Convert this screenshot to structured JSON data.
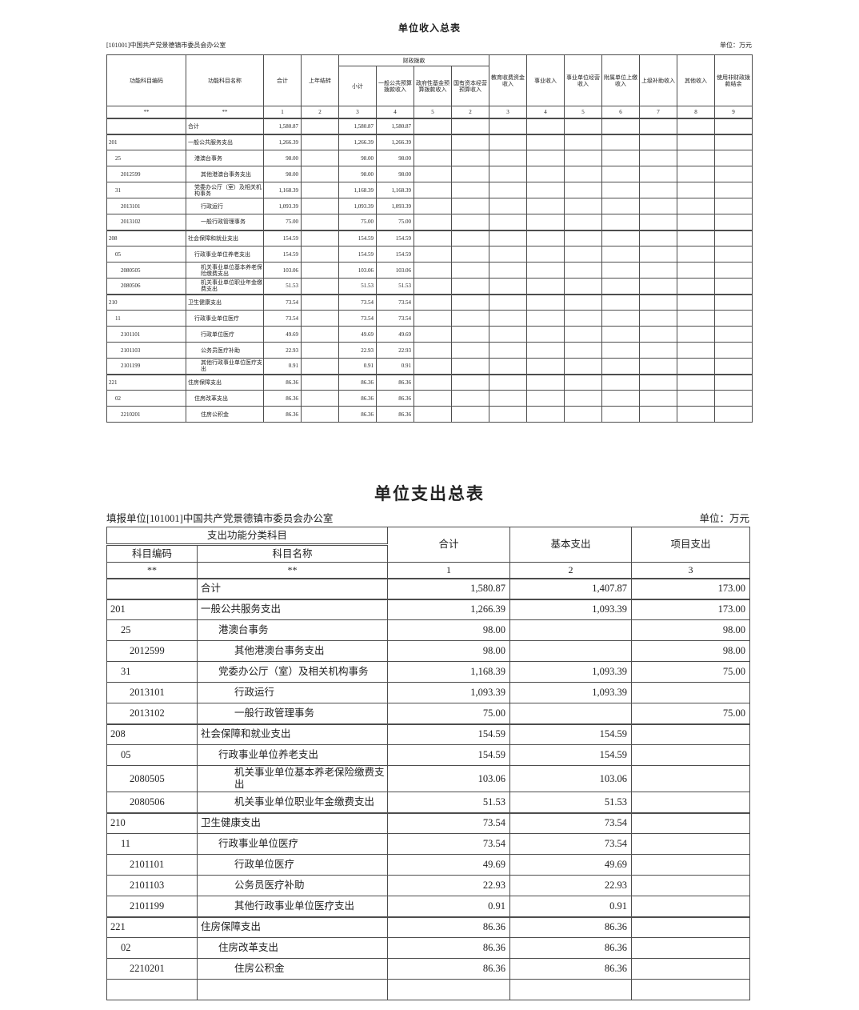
{
  "page": {
    "background_color": "#ffffff",
    "text_color": "#222222",
    "border_color": "#4d4d4d"
  },
  "income_table": {
    "title": "单位收入总表",
    "org": "[101001]中国共产党景德镇市委员会办公室",
    "unit_label": "单位：万元",
    "headers": {
      "code": "功能科目编码",
      "name": "功能科目名称",
      "total": "合计",
      "prev_year": "上年结转",
      "fiscal_group": "财政拨款",
      "fiscal_sub": [
        "小计",
        "一般公共预算拨款收入",
        "政府性基金预算拨款收入",
        "国有资本经营预算收入"
      ],
      "other_cols": [
        "教育收费资金收入",
        "事业收入",
        "事业单位经营收入",
        "附属单位上缴收入",
        "上级补助收入",
        "其他收入",
        "使用非财政拨款结余"
      ]
    },
    "numbering": [
      "**",
      "**",
      "1",
      "2",
      "3",
      "4",
      "5",
      "2",
      "3",
      "4",
      "5",
      "6",
      "7",
      "8",
      "9"
    ],
    "rows": [
      {
        "code": "",
        "name": "合计",
        "level": 0,
        "values": [
          "1,580.87",
          "",
          "1,580.87",
          "1,580.87",
          "",
          "",
          "",
          "",
          "",
          "",
          "",
          "",
          ""
        ]
      },
      {
        "code": "201",
        "name": "一般公共服务支出",
        "level": 0,
        "values": [
          "1,266.39",
          "",
          "1,266.39",
          "1,266.39",
          "",
          "",
          "",
          "",
          "",
          "",
          "",
          "",
          ""
        ]
      },
      {
        "code": "25",
        "name": "港澳台事务",
        "level": 1,
        "values": [
          "98.00",
          "",
          "98.00",
          "98.00",
          "",
          "",
          "",
          "",
          "",
          "",
          "",
          "",
          ""
        ]
      },
      {
        "code": "2012599",
        "name": "其他港澳台事务支出",
        "level": 2,
        "values": [
          "98.00",
          "",
          "98.00",
          "98.00",
          "",
          "",
          "",
          "",
          "",
          "",
          "",
          "",
          ""
        ]
      },
      {
        "code": "31",
        "name": "党委办公厅（室）及相关机构事务",
        "level": 1,
        "values": [
          "1,168.39",
          "",
          "1,168.39",
          "1,168.39",
          "",
          "",
          "",
          "",
          "",
          "",
          "",
          "",
          ""
        ]
      },
      {
        "code": "2013101",
        "name": "行政运行",
        "level": 2,
        "values": [
          "1,093.39",
          "",
          "1,093.39",
          "1,093.39",
          "",
          "",
          "",
          "",
          "",
          "",
          "",
          "",
          ""
        ]
      },
      {
        "code": "2013102",
        "name": "一般行政管理事务",
        "level": 2,
        "values": [
          "75.00",
          "",
          "75.00",
          "75.00",
          "",
          "",
          "",
          "",
          "",
          "",
          "",
          "",
          ""
        ]
      },
      {
        "code": "208",
        "name": "社会保障和就业支出",
        "level": 0,
        "values": [
          "154.59",
          "",
          "154.59",
          "154.59",
          "",
          "",
          "",
          "",
          "",
          "",
          "",
          "",
          ""
        ]
      },
      {
        "code": "05",
        "name": "行政事业单位养老支出",
        "level": 1,
        "values": [
          "154.59",
          "",
          "154.59",
          "154.59",
          "",
          "",
          "",
          "",
          "",
          "",
          "",
          "",
          ""
        ]
      },
      {
        "code": "2080505",
        "name": "机关事业单位基本养老保险缴费支出",
        "level": 2,
        "values": [
          "103.06",
          "",
          "103.06",
          "103.06",
          "",
          "",
          "",
          "",
          "",
          "",
          "",
          "",
          ""
        ]
      },
      {
        "code": "2080506",
        "name": "机关事业单位职业年金缴费支出",
        "level": 2,
        "values": [
          "51.53",
          "",
          "51.53",
          "51.53",
          "",
          "",
          "",
          "",
          "",
          "",
          "",
          "",
          ""
        ]
      },
      {
        "code": "210",
        "name": "卫生健康支出",
        "level": 0,
        "values": [
          "73.54",
          "",
          "73.54",
          "73.54",
          "",
          "",
          "",
          "",
          "",
          "",
          "",
          "",
          ""
        ]
      },
      {
        "code": "11",
        "name": "行政事业单位医疗",
        "level": 1,
        "values": [
          "73.54",
          "",
          "73.54",
          "73.54",
          "",
          "",
          "",
          "",
          "",
          "",
          "",
          "",
          ""
        ]
      },
      {
        "code": "2101101",
        "name": "行政单位医疗",
        "level": 2,
        "values": [
          "49.69",
          "",
          "49.69",
          "49.69",
          "",
          "",
          "",
          "",
          "",
          "",
          "",
          "",
          ""
        ]
      },
      {
        "code": "2101103",
        "name": "公务员医疗补助",
        "level": 2,
        "values": [
          "22.93",
          "",
          "22.93",
          "22.93",
          "",
          "",
          "",
          "",
          "",
          "",
          "",
          "",
          ""
        ]
      },
      {
        "code": "2101199",
        "name": "其他行政事业单位医疗支出",
        "level": 2,
        "values": [
          "0.91",
          "",
          "0.91",
          "0.91",
          "",
          "",
          "",
          "",
          "",
          "",
          "",
          "",
          ""
        ]
      },
      {
        "code": "221",
        "name": "住房保障支出",
        "level": 0,
        "values": [
          "86.36",
          "",
          "86.36",
          "86.36",
          "",
          "",
          "",
          "",
          "",
          "",
          "",
          "",
          ""
        ]
      },
      {
        "code": "02",
        "name": "住房改革支出",
        "level": 1,
        "values": [
          "86.36",
          "",
          "86.36",
          "86.36",
          "",
          "",
          "",
          "",
          "",
          "",
          "",
          "",
          ""
        ]
      },
      {
        "code": "2210201",
        "name": "住房公积金",
        "level": 2,
        "values": [
          "86.36",
          "",
          "86.36",
          "86.36",
          "",
          "",
          "",
          "",
          "",
          "",
          "",
          "",
          ""
        ]
      }
    ]
  },
  "expense_table": {
    "title": "单位支出总表",
    "org": "填报单位[101001]中国共产党景德镇市委员会办公室",
    "unit_label": "单位：万元",
    "headers": {
      "group": "支出功能分类科目",
      "code": "科目编码",
      "name": "科目名称",
      "total": "合计",
      "basic": "基本支出",
      "project": "项目支出"
    },
    "numbering": [
      "**",
      "**",
      "1",
      "2",
      "3"
    ],
    "rows": [
      {
        "code": "",
        "name": "合计",
        "level": 0,
        "values": [
          "1,580.87",
          "1,407.87",
          "173.00"
        ]
      },
      {
        "code": "201",
        "name": "一般公共服务支出",
        "level": 0,
        "values": [
          "1,266.39",
          "1,093.39",
          "173.00"
        ]
      },
      {
        "code": "25",
        "name": "港澳台事务",
        "level": 1,
        "values": [
          "98.00",
          "",
          "98.00"
        ]
      },
      {
        "code": "2012599",
        "name": "其他港澳台事务支出",
        "level": 2,
        "values": [
          "98.00",
          "",
          "98.00"
        ]
      },
      {
        "code": "31",
        "name": "党委办公厅（室）及相关机构事务",
        "level": 1,
        "values": [
          "1,168.39",
          "1,093.39",
          "75.00"
        ]
      },
      {
        "code": "2013101",
        "name": "行政运行",
        "level": 2,
        "values": [
          "1,093.39",
          "1,093.39",
          ""
        ]
      },
      {
        "code": "2013102",
        "name": "一般行政管理事务",
        "level": 2,
        "values": [
          "75.00",
          "",
          "75.00"
        ]
      },
      {
        "code": "208",
        "name": "社会保障和就业支出",
        "level": 0,
        "values": [
          "154.59",
          "154.59",
          ""
        ]
      },
      {
        "code": "05",
        "name": "行政事业单位养老支出",
        "level": 1,
        "values": [
          "154.59",
          "154.59",
          ""
        ]
      },
      {
        "code": "2080505",
        "name": "机关事业单位基本养老保险缴费支出",
        "level": 2,
        "values": [
          "103.06",
          "103.06",
          ""
        ]
      },
      {
        "code": "2080506",
        "name": "机关事业单位职业年金缴费支出",
        "level": 2,
        "values": [
          "51.53",
          "51.53",
          ""
        ]
      },
      {
        "code": "210",
        "name": "卫生健康支出",
        "level": 0,
        "values": [
          "73.54",
          "73.54",
          ""
        ]
      },
      {
        "code": "11",
        "name": "行政事业单位医疗",
        "level": 1,
        "values": [
          "73.54",
          "73.54",
          ""
        ]
      },
      {
        "code": "2101101",
        "name": "行政单位医疗",
        "level": 2,
        "values": [
          "49.69",
          "49.69",
          ""
        ]
      },
      {
        "code": "2101103",
        "name": "公务员医疗补助",
        "level": 2,
        "values": [
          "22.93",
          "22.93",
          ""
        ]
      },
      {
        "code": "2101199",
        "name": "其他行政事业单位医疗支出",
        "level": 2,
        "values": [
          "0.91",
          "0.91",
          ""
        ]
      },
      {
        "code": "221",
        "name": "住房保障支出",
        "level": 0,
        "values": [
          "86.36",
          "86.36",
          ""
        ]
      },
      {
        "code": "02",
        "name": "住房改革支出",
        "level": 1,
        "values": [
          "86.36",
          "86.36",
          ""
        ]
      },
      {
        "code": "2210201",
        "name": "住房公积金",
        "level": 2,
        "values": [
          "86.36",
          "86.36",
          ""
        ]
      },
      {
        "code": "",
        "name": "",
        "level": 2,
        "values": [
          "",
          "",
          ""
        ]
      }
    ]
  }
}
